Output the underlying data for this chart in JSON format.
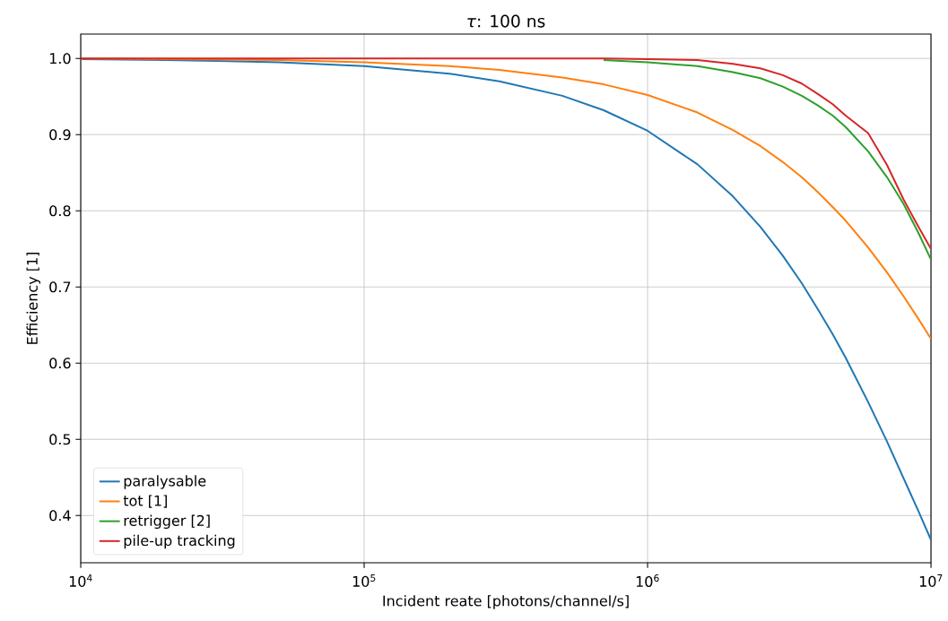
{
  "chart_data": {
    "type": "line",
    "title": "*τ*: 100 ns",
    "xlabel": "Incident reate [photons/channel/s]",
    "ylabel": "Efficiency [1]",
    "x": [
      10000,
      20000,
      50000,
      100000,
      200000,
      300000,
      500000,
      700000,
      1000000,
      1500000,
      2000000,
      2500000,
      3000000,
      3500000,
      4000000,
      4500000,
      5000000,
      6000000,
      7000000,
      8000000,
      9000000,
      10000000
    ],
    "series": [
      {
        "name": "paralysable",
        "color": "#1f77b4",
        "values": [
          0.999,
          0.998,
          0.995,
          0.99,
          0.98,
          0.97,
          0.951,
          0.932,
          0.905,
          0.861,
          0.819,
          0.779,
          0.741,
          0.705,
          0.67,
          0.638,
          0.607,
          0.549,
          0.497,
          0.449,
          0.407,
          0.368
        ]
      },
      {
        "name": "tot [1]",
        "color": "#ff7f0e",
        "values": [
          1.0,
          0.999,
          0.998,
          0.995,
          0.99,
          0.985,
          0.975,
          0.966,
          0.952,
          0.929,
          0.906,
          0.885,
          0.864,
          0.844,
          0.824,
          0.805,
          0.787,
          0.752,
          0.719,
          0.688,
          0.659,
          0.632
        ]
      },
      {
        "name": "retrigger [2]",
        "color": "#2ca02c",
        "values": [
          null,
          null,
          null,
          null,
          null,
          null,
          null,
          0.998,
          0.995,
          0.99,
          0.982,
          0.974,
          0.963,
          0.951,
          0.938,
          0.925,
          0.91,
          0.878,
          0.844,
          0.809,
          0.772,
          0.736
        ]
      },
      {
        "name": "pile-up tracking",
        "color": "#d62728",
        "values": [
          1.0,
          1.0,
          1.0,
          1.0,
          1.0,
          1.0,
          1.0,
          1.0,
          0.999,
          0.998,
          0.993,
          0.987,
          0.978,
          0.967,
          0.953,
          0.94,
          0.925,
          0.902,
          0.86,
          0.815,
          0.78,
          0.75
        ]
      }
    ],
    "xlim": [
      10000,
      10000000
    ],
    "ylim": [
      0.338,
      1.032
    ],
    "log": "x",
    "xticks": [
      {
        "value": 10000,
        "label": "10$^{4}$"
      },
      {
        "value": 100000,
        "label": "10$^{5}$"
      },
      {
        "value": 1000000,
        "label": "10$^{6}$"
      },
      {
        "value": 10000000,
        "label": "10$^{7}$"
      }
    ],
    "yticks": [
      0.4,
      0.5,
      0.6,
      0.7,
      0.8,
      0.9,
      {
        "value": 1,
        "label": "1.0"
      }
    ],
    "grid": true,
    "legend": "bottom left",
    "marker": "none",
    "line_style": "solid"
  }
}
